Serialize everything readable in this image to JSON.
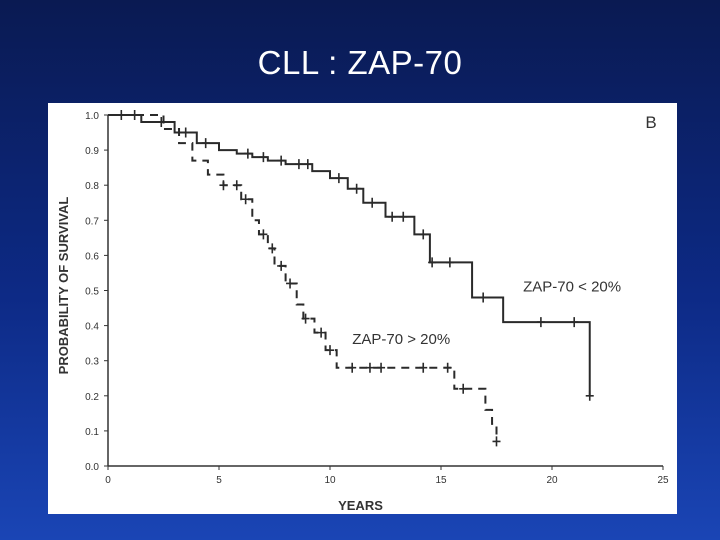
{
  "slide": {
    "title": "CLL : ZAP-70"
  },
  "chart_data": {
    "type": "line",
    "panel_label": "B",
    "xlabel": "YEARS",
    "ylabel": "PROBABILITY OF SURVIVAL",
    "xlim": [
      0,
      25
    ],
    "ylim": [
      0,
      1.0
    ],
    "xticks": [
      0,
      5,
      10,
      15,
      20,
      25
    ],
    "yticks": [
      0.0,
      0.1,
      0.2,
      0.3,
      0.4,
      0.5,
      0.6,
      0.7,
      0.8,
      0.9,
      1.0
    ],
    "ytick_labels": [
      "0.0",
      "0.1",
      "0.2",
      "0.3",
      "0.4",
      "0.5",
      "0.6",
      "0.7",
      "0.8",
      "0.9",
      "1.0"
    ],
    "step_interpolation": "post",
    "series": [
      {
        "name": "ZAP-70 < 20%",
        "line_style": "solid",
        "color": "#2a2a2a",
        "x": [
          0,
          1.5,
          3.0,
          4.0,
          5.0,
          5.8,
          6.5,
          7.2,
          8.0,
          9.2,
          10.0,
          10.8,
          11.5,
          12.5,
          13.8,
          14.5,
          16.4,
          16.9,
          17.8,
          21.7,
          21.7
        ],
        "y": [
          1.0,
          0.98,
          0.95,
          0.92,
          0.9,
          0.89,
          0.88,
          0.87,
          0.86,
          0.84,
          0.82,
          0.79,
          0.75,
          0.71,
          0.66,
          0.58,
          0.48,
          0.48,
          0.41,
          0.41,
          0.2
        ],
        "censored_x": [
          0.6,
          1.2,
          2.4,
          3.5,
          4.4,
          6.3,
          7.0,
          7.8,
          8.6,
          9.0,
          10.4,
          11.2,
          11.9,
          12.8,
          13.3,
          14.2,
          14.6,
          15.4,
          16.9,
          19.5,
          21.0,
          21.7
        ],
        "legend_label": "ZAP-70 < 20%"
      },
      {
        "name": "ZAP-70 ≥ 20%",
        "line_style": "dashed",
        "color": "#2a2a2a",
        "x": [
          0,
          2.5,
          3.2,
          3.8,
          4.5,
          5.2,
          6.0,
          6.5,
          6.8,
          7.2,
          7.5,
          8.0,
          8.5,
          8.8,
          9.3,
          9.8,
          10.3,
          15.5,
          15.6,
          15.6,
          16.8,
          17.0,
          17.3,
          17.5
        ],
        "y": [
          1.0,
          0.96,
          0.92,
          0.87,
          0.83,
          0.8,
          0.76,
          0.7,
          0.66,
          0.62,
          0.57,
          0.52,
          0.46,
          0.42,
          0.38,
          0.33,
          0.28,
          0.28,
          0.28,
          0.22,
          0.22,
          0.16,
          0.12,
          0.07
        ],
        "censored_x": [
          5.2,
          5.8,
          6.2,
          7.0,
          7.4,
          7.8,
          8.2,
          8.9,
          9.6,
          10.0,
          11.0,
          11.8,
          12.3,
          14.2,
          15.3,
          16.0,
          17.5
        ],
        "legend_label": "ZAP-70 > 20%"
      }
    ],
    "annotations": [
      {
        "text": "ZAP-70 < 20%",
        "x": 18.7,
        "y": 0.48
      },
      {
        "text": "ZAP-70 > 20%",
        "x": 11.0,
        "y": 0.33
      }
    ]
  }
}
